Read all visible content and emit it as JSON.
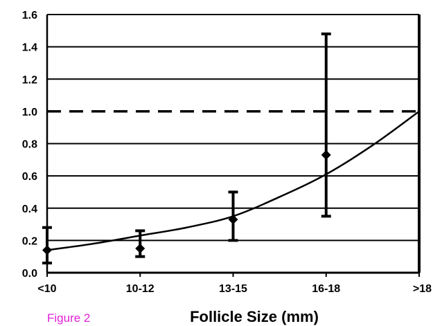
{
  "caption": {
    "text": "Figure 2",
    "color": "#e020d8"
  },
  "chart_data": {
    "type": "line",
    "title": "",
    "xlabel": "Follicle Size (mm)",
    "ylabel": "",
    "categories": [
      "<10",
      "10-12",
      "13-15",
      "16-18",
      ">18"
    ],
    "ylim": [
      0,
      1.6
    ],
    "yticks": [
      "0.0",
      "0.2",
      "0.4",
      "0.6",
      "0.8",
      "1.0",
      "1.2",
      "1.4",
      "1.6"
    ],
    "grid": true,
    "reference_line": {
      "y": 1.0,
      "style": "dashed"
    },
    "series": [
      {
        "kind": "points-with-error-bars",
        "values": [
          0.14,
          0.15,
          0.33,
          0.73,
          1.0
        ],
        "lower": [
          0.06,
          0.1,
          0.2,
          0.35,
          null
        ],
        "upper": [
          0.28,
          0.26,
          0.5,
          1.48,
          null
        ]
      },
      {
        "kind": "fitted-curve",
        "x": [
          0,
          0.5,
          1,
          1.5,
          2,
          2.5,
          3,
          3.5,
          4
        ],
        "values": [
          0.14,
          0.18,
          0.23,
          0.28,
          0.35,
          0.47,
          0.61,
          0.79,
          1.0
        ]
      }
    ]
  }
}
